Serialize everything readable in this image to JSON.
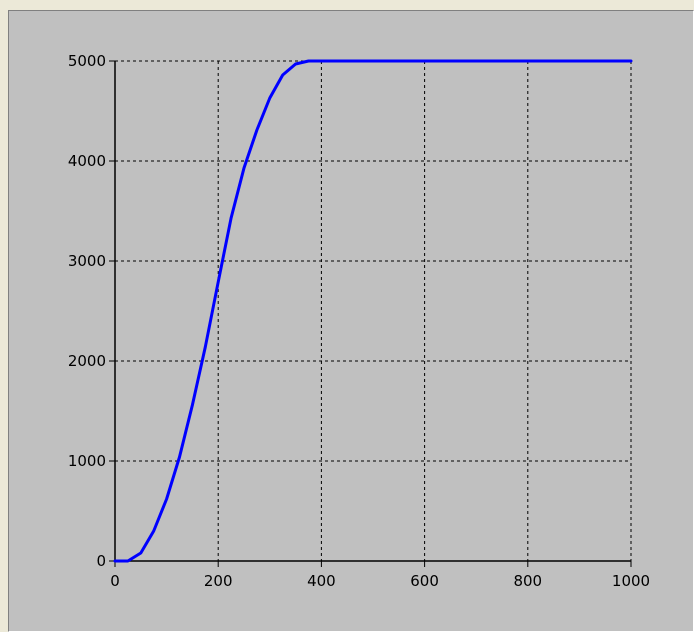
{
  "colors": {
    "panel_bg": "#ece9d8",
    "plot_bg": "#c0c0c0",
    "grid": "#000000",
    "axis": "#000000",
    "series": "#0000ff"
  },
  "chart_data": {
    "type": "line",
    "title": "",
    "xlabel": "",
    "ylabel": "",
    "xlim": [
      0,
      1000
    ],
    "ylim": [
      0,
      5000
    ],
    "grid": true,
    "grid_style": "dashed",
    "x_ticks": [
      0,
      200,
      400,
      600,
      800,
      1000
    ],
    "y_ticks": [
      0,
      1000,
      2000,
      3000,
      4000,
      5000
    ],
    "x_tick_labels": [
      "0",
      "200",
      "400",
      "600",
      "800",
      "1000"
    ],
    "y_tick_labels": [
      "0",
      "1000",
      "2000",
      "3000",
      "4000",
      "5000"
    ],
    "series": [
      {
        "x": [
          0,
          25,
          50,
          75,
          100,
          125,
          150,
          175,
          200,
          225,
          250,
          275,
          300,
          325,
          350,
          375,
          400,
          500,
          600,
          700,
          800,
          900,
          1000
        ],
        "y": [
          0,
          0,
          80,
          300,
          620,
          1040,
          1560,
          2140,
          2790,
          3430,
          3930,
          4310,
          4630,
          4860,
          4970,
          5000,
          5000,
          5000,
          5000,
          5000,
          5000,
          5000,
          5000
        ]
      }
    ]
  }
}
